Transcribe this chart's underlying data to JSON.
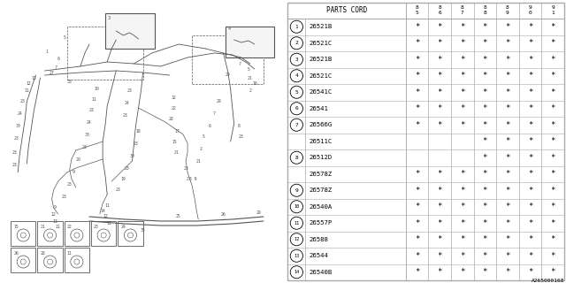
{
  "bg_color": "#ffffff",
  "table": {
    "header_label": "PARTS CORD",
    "col_headers": [
      "8\n5",
      "8\n6",
      "8\n7",
      "8\n8",
      "8\n9",
      "9\n0",
      "9\n1"
    ],
    "col_prefix": [
      "8",
      "8",
      "8",
      "8",
      "8",
      "9",
      ""
    ],
    "rows": [
      {
        "num": "1",
        "code": "26521B",
        "marks": [
          1,
          1,
          1,
          1,
          1,
          1,
          1
        ]
      },
      {
        "num": "2",
        "code": "26521C",
        "marks": [
          1,
          1,
          1,
          1,
          1,
          1,
          1
        ]
      },
      {
        "num": "3",
        "code": "26521B",
        "marks": [
          1,
          1,
          1,
          1,
          1,
          1,
          1
        ]
      },
      {
        "num": "4",
        "code": "26521C",
        "marks": [
          1,
          1,
          1,
          1,
          1,
          1,
          1
        ]
      },
      {
        "num": "5",
        "code": "26541C",
        "marks": [
          1,
          1,
          1,
          1,
          1,
          1,
          1
        ]
      },
      {
        "num": "6",
        "code": "26541",
        "marks": [
          1,
          1,
          1,
          1,
          1,
          1,
          1
        ]
      },
      {
        "num": "7",
        "code": "26566G",
        "marks": [
          1,
          1,
          1,
          1,
          1,
          1,
          1
        ]
      },
      {
        "num": "",
        "code": "26511C",
        "marks": [
          0,
          0,
          0,
          1,
          1,
          1,
          1
        ]
      },
      {
        "num": "8",
        "code": "26512D",
        "marks": [
          0,
          0,
          0,
          1,
          1,
          1,
          1
        ]
      },
      {
        "num": "",
        "code": "26578Z",
        "marks": [
          1,
          1,
          1,
          1,
          1,
          1,
          1
        ]
      },
      {
        "num": "9",
        "code": "26578Z",
        "marks": [
          1,
          1,
          1,
          1,
          1,
          1,
          1
        ]
      },
      {
        "num": "10",
        "code": "26540A",
        "marks": [
          1,
          1,
          1,
          1,
          1,
          1,
          1
        ]
      },
      {
        "num": "11",
        "code": "26557P",
        "marks": [
          1,
          1,
          1,
          1,
          1,
          1,
          1
        ]
      },
      {
        "num": "12",
        "code": "26588",
        "marks": [
          1,
          1,
          1,
          1,
          1,
          1,
          1
        ]
      },
      {
        "num": "13",
        "code": "26544",
        "marks": [
          1,
          1,
          1,
          1,
          1,
          1,
          1
        ]
      },
      {
        "num": "14",
        "code": "26540B",
        "marks": [
          1,
          1,
          1,
          1,
          1,
          1,
          1
        ]
      }
    ]
  },
  "footnote": "A265000168",
  "line_color": "#aaaaaa",
  "text_color": "#000000",
  "table_border_color": "#aaaaaa",
  "diagram_color": "#555555"
}
